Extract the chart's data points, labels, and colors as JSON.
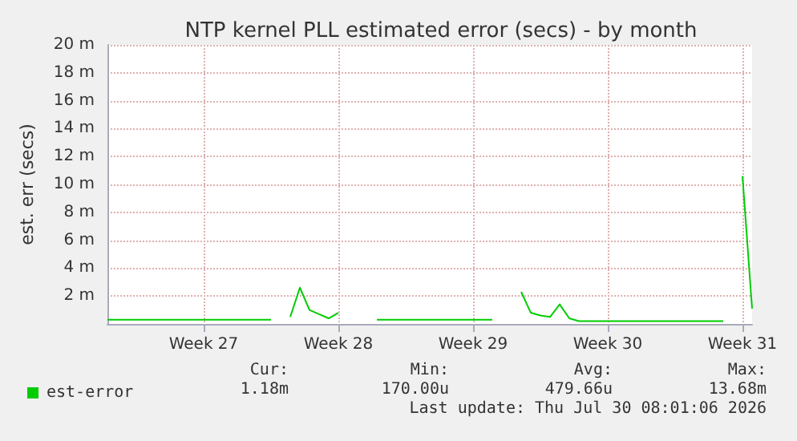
{
  "chart_data": {
    "type": "line",
    "title": "NTP kernel PLL estimated error (secs) - by month",
    "ylabel": "est. err (secs)",
    "categories": [
      null,
      null,
      null,
      null,
      null,
      null,
      null,
      null,
      null,
      null,
      "Week 27",
      null,
      null,
      null,
      null,
      null,
      null,
      null,
      null,
      null,
      null,
      null,
      null,
      null,
      "Week 28",
      null,
      null,
      null,
      null,
      null,
      null,
      null,
      null,
      null,
      null,
      null,
      null,
      null,
      "Week 29",
      null,
      null,
      null,
      null,
      null,
      null,
      null,
      null,
      null,
      null,
      null,
      null,
      null,
      "Week 30",
      null,
      null,
      null,
      null,
      null,
      null,
      null,
      null,
      null,
      null,
      null,
      null,
      null,
      "Week 31",
      null
    ],
    "series": [
      {
        "name": "est-error",
        "color": "#00cc00",
        "values": [
          0.3,
          0.3,
          0.3,
          0.3,
          0.3,
          0.3,
          0.3,
          0.3,
          0.3,
          0.3,
          0.3,
          0.3,
          0.3,
          0.3,
          0.3,
          0.3,
          0.3,
          0.3,
          null,
          0.5,
          2.6,
          1.0,
          0.7,
          0.4,
          0.8,
          null,
          null,
          null,
          0.3,
          0.3,
          0.3,
          0.3,
          0.3,
          0.3,
          0.3,
          0.3,
          0.3,
          0.3,
          0.3,
          0.3,
          0.3,
          null,
          null,
          2.3,
          0.8,
          0.6,
          0.5,
          1.4,
          0.4,
          0.2,
          0.2,
          0.2,
          0.2,
          0.2,
          0.2,
          0.2,
          0.2,
          0.2,
          0.2,
          0.2,
          0.2,
          0.2,
          0.2,
          0.2,
          0.2,
          null,
          10.6,
          1.1
        ]
      }
    ],
    "ylim": [
      0,
      20
    ],
    "yticks": [
      {
        "value": 2,
        "label": "2 m"
      },
      {
        "value": 4,
        "label": "4 m"
      },
      {
        "value": 6,
        "label": "6 m"
      },
      {
        "value": 8,
        "label": "8 m"
      },
      {
        "value": 10,
        "label": "10 m"
      },
      {
        "value": 12,
        "label": "12 m"
      },
      {
        "value": 14,
        "label": "14 m"
      },
      {
        "value": 16,
        "label": "16 m"
      },
      {
        "value": 18,
        "label": "18 m"
      },
      {
        "value": 20,
        "label": "20 m"
      }
    ],
    "grid": true,
    "legend": "bottom left",
    "marker": "none",
    "line_style": "solid",
    "annotations": [
      "Cur:",
      "1.18m",
      "Min:",
      "170.00u",
      "Avg:",
      "479.66u",
      "Max:",
      "13.68m",
      "Last update: Thu Jul 30 08:01:06 2026"
    ]
  }
}
